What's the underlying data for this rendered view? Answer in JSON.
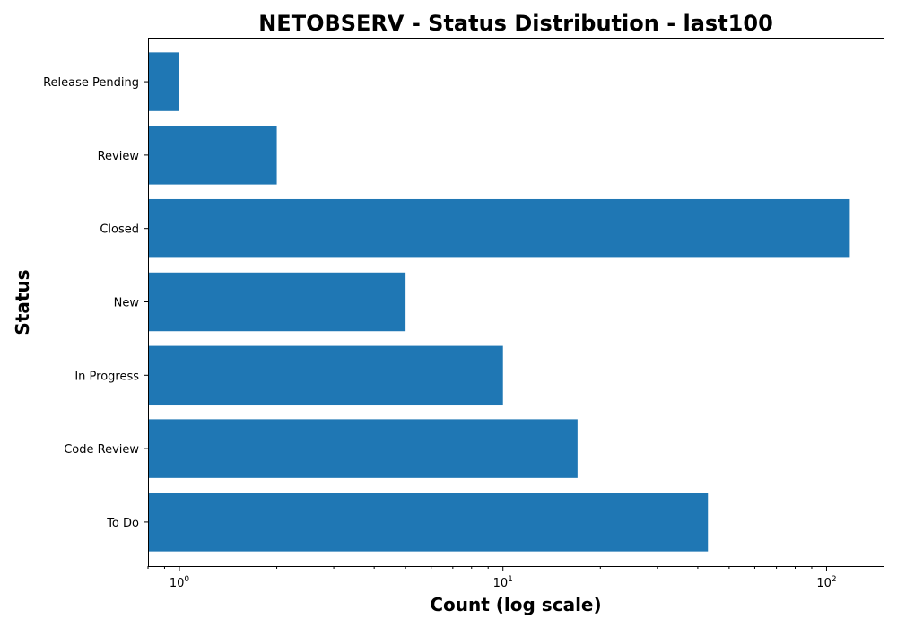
{
  "chart_data": {
    "type": "bar",
    "orientation": "horizontal",
    "title": "NETOBSERV - Status Distribution - last100",
    "xlabel": "Count (log scale)",
    "ylabel": "Status",
    "x_scale": "log",
    "xlim": [
      0.8,
      150
    ],
    "x_ticks": [
      {
        "value": 1,
        "base": "10",
        "exp": "0"
      },
      {
        "value": 10,
        "base": "10",
        "exp": "1"
      },
      {
        "value": 100,
        "base": "10",
        "exp": "2"
      }
    ],
    "categories": [
      "To Do",
      "Code Review",
      "In Progress",
      "New",
      "Closed",
      "Review",
      "Release Pending"
    ],
    "values": [
      43,
      17,
      10,
      5,
      118,
      2,
      1
    ],
    "bar_color": "#1f77b4",
    "grid": false,
    "legend": "none"
  }
}
